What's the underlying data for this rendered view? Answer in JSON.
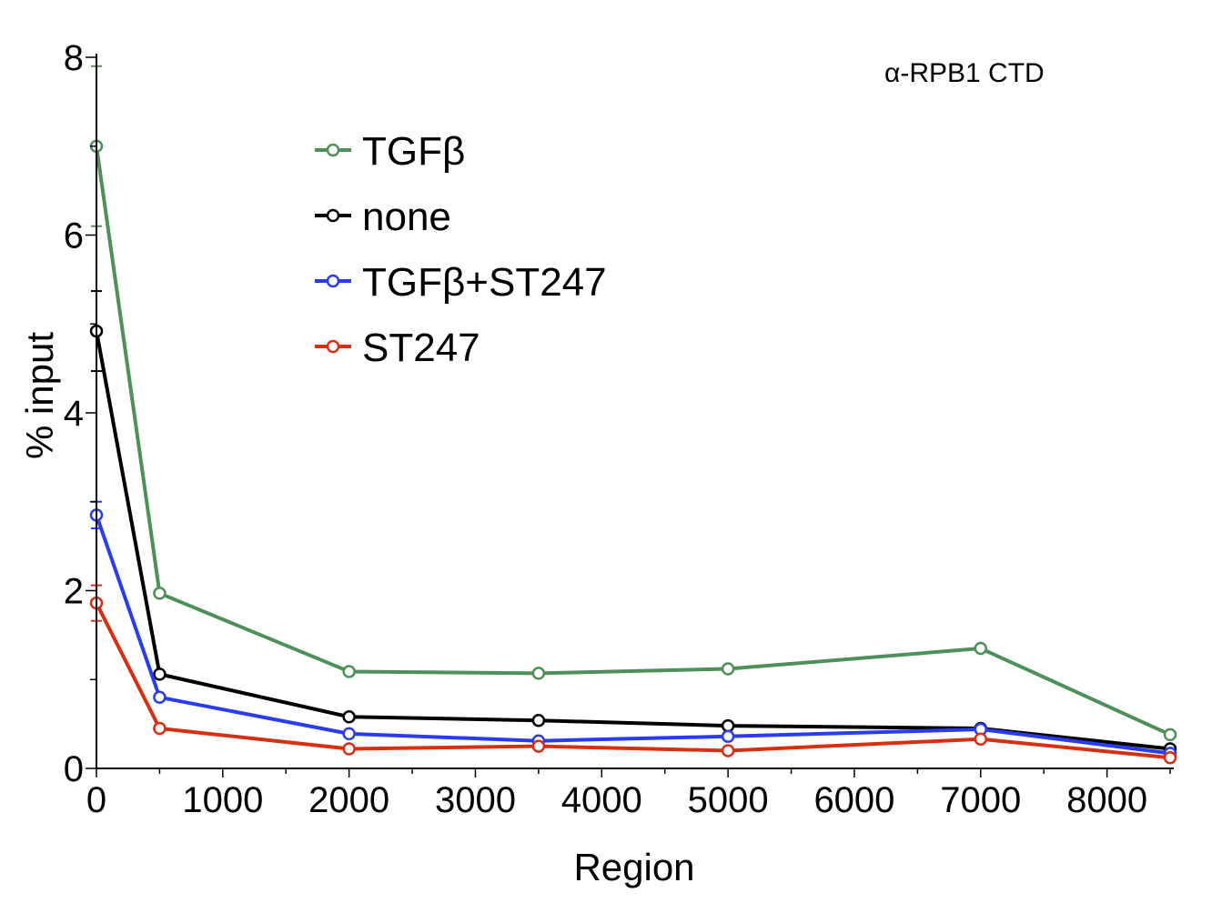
{
  "chart_data": {
    "type": "line",
    "title": "",
    "annotation": "α-RPB1 CTD",
    "xlabel": "Region",
    "ylabel": "% input",
    "xlim": [
      0,
      8500
    ],
    "ylim": [
      0,
      8
    ],
    "x_ticks": [
      0,
      1000,
      2000,
      3000,
      4000,
      5000,
      6000,
      7000,
      8000
    ],
    "y_ticks": [
      0,
      2,
      4,
      6,
      8
    ],
    "grid": false,
    "legend_position": "top-center",
    "x": [
      0,
      500,
      2000,
      3500,
      5000,
      7000,
      8500
    ],
    "series": [
      {
        "name": "TGFβ",
        "color": "#4f8f5a",
        "values": [
          7.0,
          1.97,
          1.09,
          1.07,
          1.12,
          1.35,
          0.38
        ],
        "error": [
          0.9,
          0,
          0,
          0,
          0,
          0,
          0
        ]
      },
      {
        "name": "none",
        "color": "#000000",
        "values": [
          4.92,
          1.06,
          0.58,
          0.54,
          0.48,
          0.45,
          0.22
        ],
        "error": [
          0.45,
          0,
          0,
          0,
          0,
          0,
          0
        ]
      },
      {
        "name": "TGFβ+ST247",
        "color": "#2a3cf0",
        "values": [
          2.85,
          0.8,
          0.39,
          0.31,
          0.36,
          0.44,
          0.17
        ],
        "error": [
          0.15,
          0,
          0,
          0,
          0,
          0,
          0
        ]
      },
      {
        "name": "ST247",
        "color": "#d62f12",
        "values": [
          1.86,
          0.45,
          0.22,
          0.25,
          0.2,
          0.33,
          0.12
        ],
        "error": [
          0.2,
          0,
          0,
          0,
          0,
          0,
          0
        ]
      }
    ]
  }
}
